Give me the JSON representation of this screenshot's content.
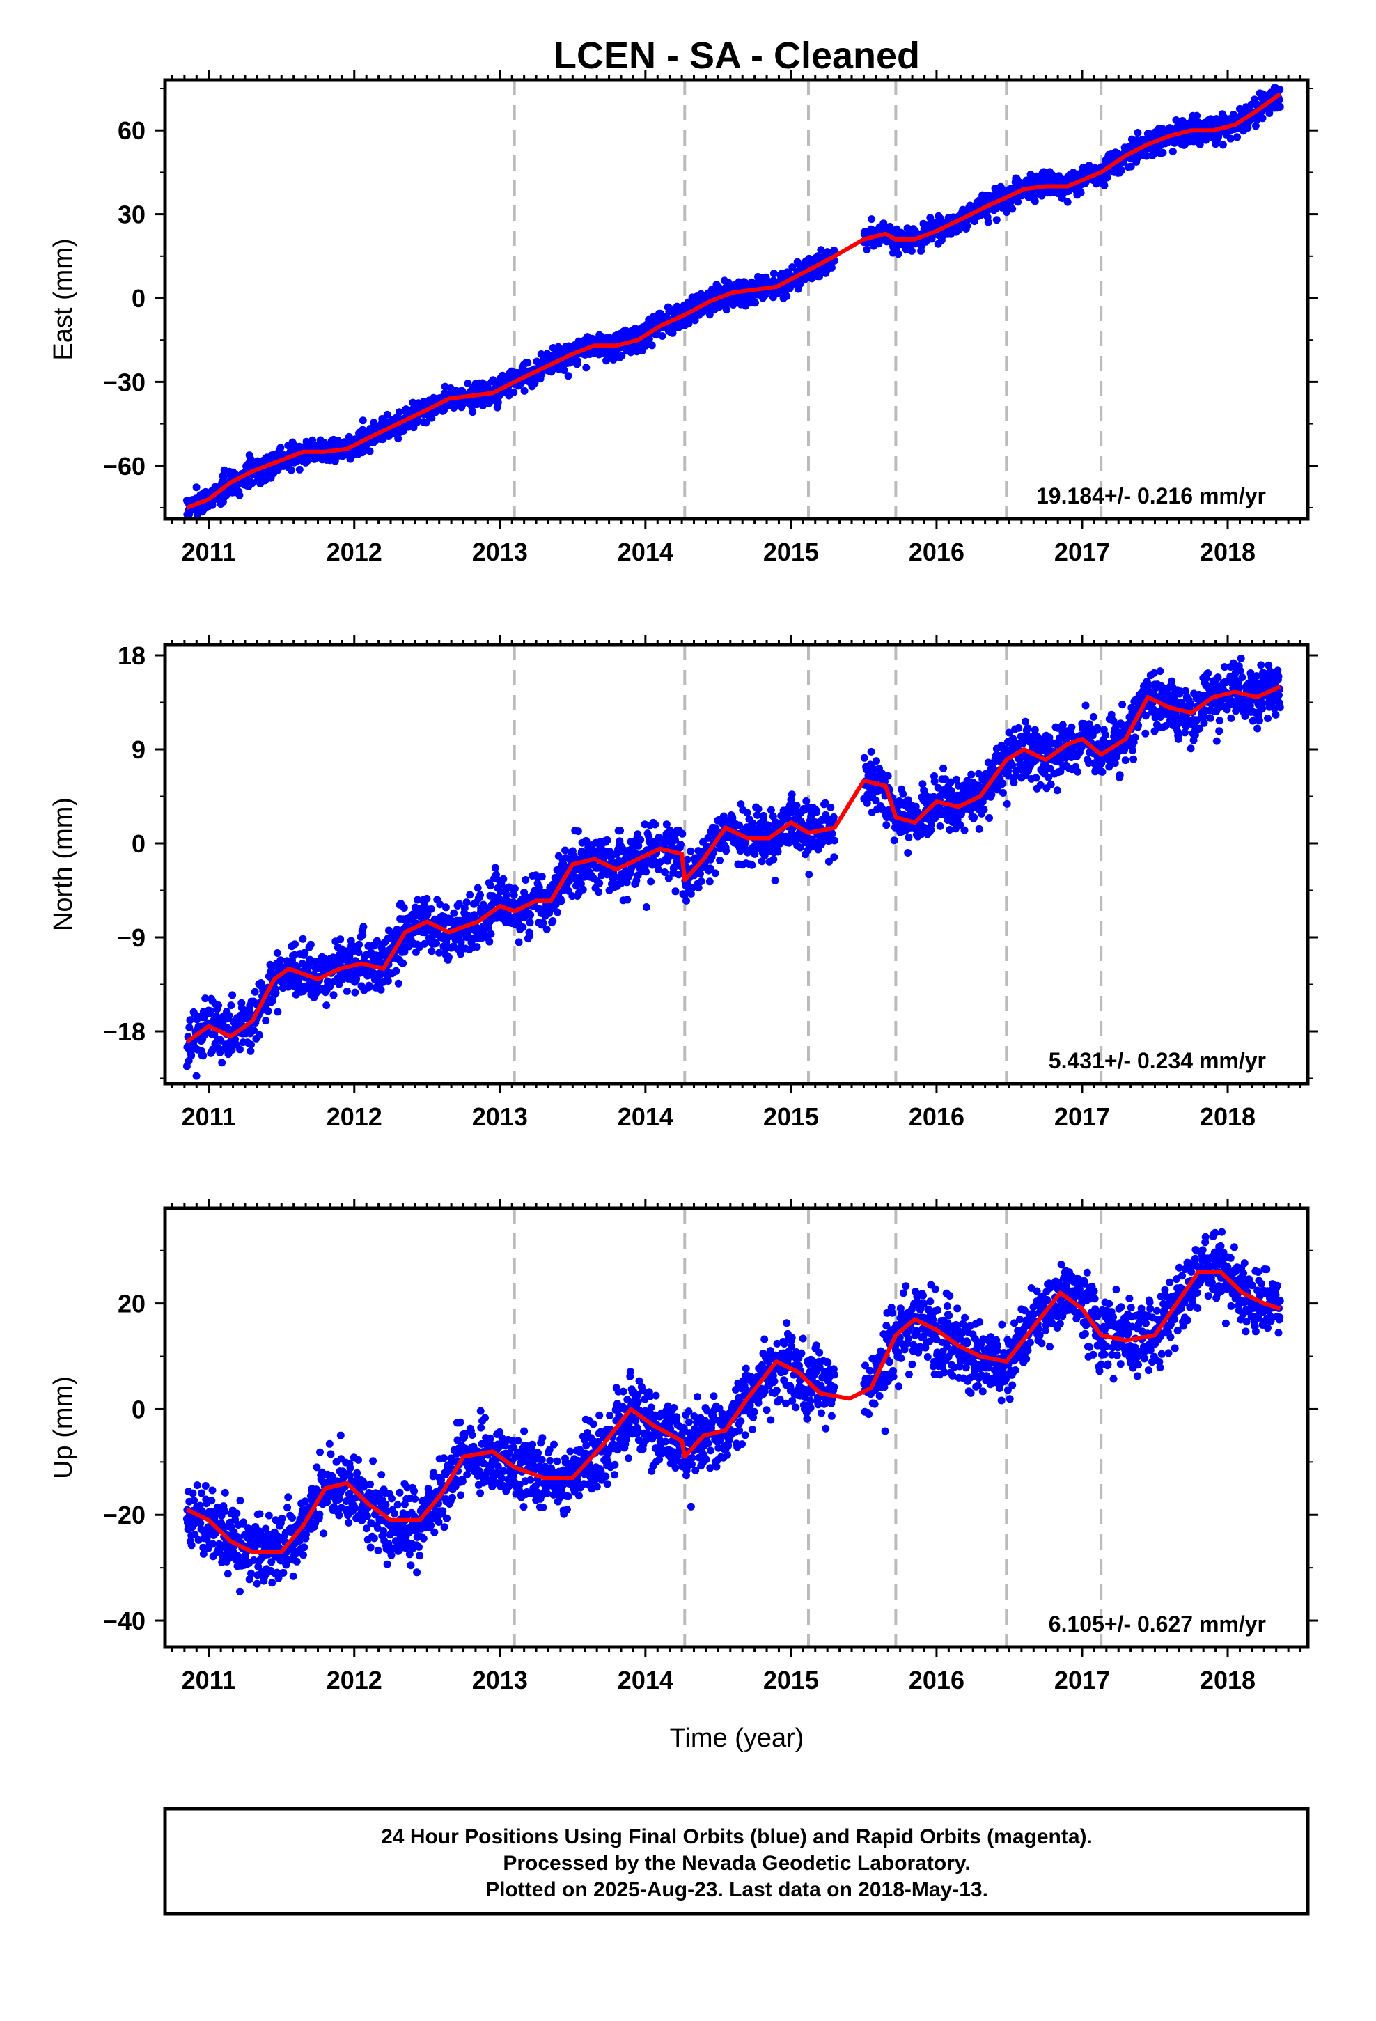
{
  "title": "LCEN  - SA - Cleaned",
  "footer": {
    "line1": "24 Hour Positions Using Final Orbits (blue) and Rapid Orbits (magenta).",
    "line2": "Processed by the Nevada Geodetic Laboratory.",
    "line3": "Plotted on 2025-Aug-23. Last data on 2018-May-13."
  },
  "colors": {
    "observations": "#0000ff",
    "model": "#ff0000",
    "offset_lines": "#bbbbbb",
    "frame": "#000000"
  },
  "chart_data": [
    {
      "type": "scatter",
      "ylabel": "East (mm)",
      "xlim": [
        2010.7,
        2018.55
      ],
      "ylim": [
        -79,
        78
      ],
      "x_ticks": [
        2011,
        2012,
        2013,
        2014,
        2015,
        2016,
        2017,
        2018
      ],
      "y_ticks": [
        -60,
        -30,
        0,
        30,
        60
      ],
      "y_tick_labels": [
        "−60",
        "−30",
        "0",
        "30",
        "60"
      ],
      "rate_label": "19.184+/- 0.216 mm/yr",
      "offset_epochs": [
        2013.1,
        2014.27,
        2015.12,
        2015.72,
        2016.48,
        2017.13
      ],
      "gaps": [
        [
          2015.3,
          2015.5
        ]
      ],
      "series": [
        {
          "role": "model",
          "x": [
            2010.85,
            2011.0,
            2011.15,
            2011.3,
            2011.5,
            2011.65,
            2011.8,
            2011.95,
            2012.1,
            2012.3,
            2012.5,
            2012.65,
            2012.8,
            2012.95,
            2013.1,
            2013.3,
            2013.5,
            2013.65,
            2013.8,
            2013.95,
            2014.1,
            2014.27,
            2014.45,
            2014.6,
            2014.75,
            2014.9,
            2015.12,
            2015.3,
            2015.5,
            2015.65,
            2015.72,
            2015.85,
            2016.0,
            2016.2,
            2016.35,
            2016.48,
            2016.6,
            2016.75,
            2016.9,
            2017.13,
            2017.3,
            2017.45,
            2017.6,
            2017.75,
            2017.9,
            2018.05,
            2018.2,
            2018.36
          ],
          "y": [
            -75,
            -72,
            -66,
            -62,
            -58,
            -55,
            -55,
            -54,
            -50,
            -45,
            -40,
            -36,
            -35,
            -34,
            -30,
            -25,
            -20,
            -17,
            -17,
            -15,
            -10,
            -6,
            -1,
            2,
            3,
            4,
            10,
            15,
            21,
            23,
            21,
            21,
            24,
            29,
            33,
            36,
            39,
            40,
            40,
            45,
            51,
            55,
            58,
            60,
            60,
            62,
            67,
            73
          ]
        },
        {
          "role": "observations",
          "scatter_mm": 2.2,
          "seed": 7
        }
      ]
    },
    {
      "type": "scatter",
      "ylabel": "North (mm)",
      "xlim": [
        2010.7,
        2018.55
      ],
      "ylim": [
        -23,
        19
      ],
      "x_ticks": [
        2011,
        2012,
        2013,
        2014,
        2015,
        2016,
        2017,
        2018
      ],
      "y_ticks": [
        -18,
        -9,
        0,
        9,
        18
      ],
      "y_tick_labels": [
        "−18",
        "−9",
        "0",
        "9",
        "18"
      ],
      "rate_label": "5.431+/- 0.234 mm/yr",
      "offset_epochs": [
        2013.1,
        2014.27,
        2015.12,
        2015.72,
        2016.48,
        2017.13
      ],
      "gaps": [
        [
          2015.3,
          2015.5
        ]
      ],
      "series": [
        {
          "role": "model",
          "x": [
            2010.85,
            2011.0,
            2011.15,
            2011.3,
            2011.45,
            2011.55,
            2011.75,
            2011.9,
            2012.05,
            2012.2,
            2012.35,
            2012.5,
            2012.65,
            2012.85,
            2013.0,
            2013.1,
            2013.25,
            2013.35,
            2013.5,
            2013.65,
            2013.8,
            2013.95,
            2014.1,
            2014.25,
            2014.27,
            2014.4,
            2014.55,
            2014.7,
            2014.85,
            2015.0,
            2015.12,
            2015.3,
            2015.5,
            2015.65,
            2015.72,
            2015.85,
            2016.0,
            2016.15,
            2016.3,
            2016.48,
            2016.6,
            2016.75,
            2016.9,
            2017.0,
            2017.13,
            2017.3,
            2017.45,
            2017.6,
            2017.75,
            2017.9,
            2018.05,
            2018.2,
            2018.36
          ],
          "y": [
            -19,
            -17.5,
            -18.5,
            -17,
            -13,
            -12,
            -13,
            -12,
            -11.5,
            -12,
            -8.5,
            -7.5,
            -8.5,
            -7.5,
            -6,
            -6.5,
            -5.5,
            -5.5,
            -2,
            -1.5,
            -2.5,
            -1.5,
            -0.5,
            -1,
            -3.5,
            -1.5,
            1.5,
            0.5,
            0.5,
            2,
            1,
            1.5,
            6,
            5.5,
            2.5,
            2,
            4,
            3.5,
            4.5,
            8,
            9,
            8,
            9.5,
            10,
            8.5,
            10,
            14,
            13,
            12.5,
            14,
            14.5,
            14,
            15
          ]
        },
        {
          "role": "observations",
          "scatter_mm": 1.3,
          "seed": 11
        }
      ]
    },
    {
      "type": "scatter",
      "ylabel": "Up (mm)",
      "xlabel": "Time (year)",
      "xlim": [
        2010.7,
        2018.55
      ],
      "ylim": [
        -45,
        38
      ],
      "x_ticks": [
        2011,
        2012,
        2013,
        2014,
        2015,
        2016,
        2017,
        2018
      ],
      "y_ticks": [
        -40,
        -20,
        0,
        20
      ],
      "y_tick_labels": [
        "−40",
        "−20",
        "0",
        "20"
      ],
      "rate_label": "6.105+/- 0.627 mm/yr",
      "offset_epochs": [
        2013.1,
        2014.27,
        2015.12,
        2015.72,
        2016.48,
        2017.13
      ],
      "gaps": [
        [
          2015.3,
          2015.5
        ]
      ],
      "series": [
        {
          "role": "model",
          "x": [
            2010.85,
            2011.0,
            2011.15,
            2011.3,
            2011.5,
            2011.65,
            2011.8,
            2011.95,
            2012.1,
            2012.25,
            2012.45,
            2012.6,
            2012.75,
            2012.95,
            2013.1,
            2013.3,
            2013.5,
            2013.7,
            2013.9,
            2014.05,
            2014.25,
            2014.27,
            2014.4,
            2014.55,
            2014.7,
            2014.9,
            2015.05,
            2015.2,
            2015.4,
            2015.55,
            2015.72,
            2015.85,
            2016.0,
            2016.15,
            2016.3,
            2016.48,
            2016.65,
            2016.85,
            2017.0,
            2017.13,
            2017.3,
            2017.5,
            2017.65,
            2017.8,
            2017.95,
            2018.1,
            2018.25,
            2018.36
          ],
          "y": [
            -19,
            -21,
            -25,
            -27,
            -27,
            -22,
            -15,
            -14,
            -18,
            -21,
            -21,
            -16,
            -9,
            -8,
            -11,
            -13,
            -13,
            -7,
            0,
            -3,
            -6,
            -9,
            -5,
            -4,
            2,
            9,
            7,
            3,
            2,
            4,
            14,
            17,
            15,
            12,
            10,
            9,
            15,
            22,
            19,
            14,
            13,
            14,
            20,
            26,
            26,
            22,
            20,
            19
          ]
        },
        {
          "role": "observations",
          "scatter_mm": 3.4,
          "seed": 23
        }
      ]
    }
  ]
}
